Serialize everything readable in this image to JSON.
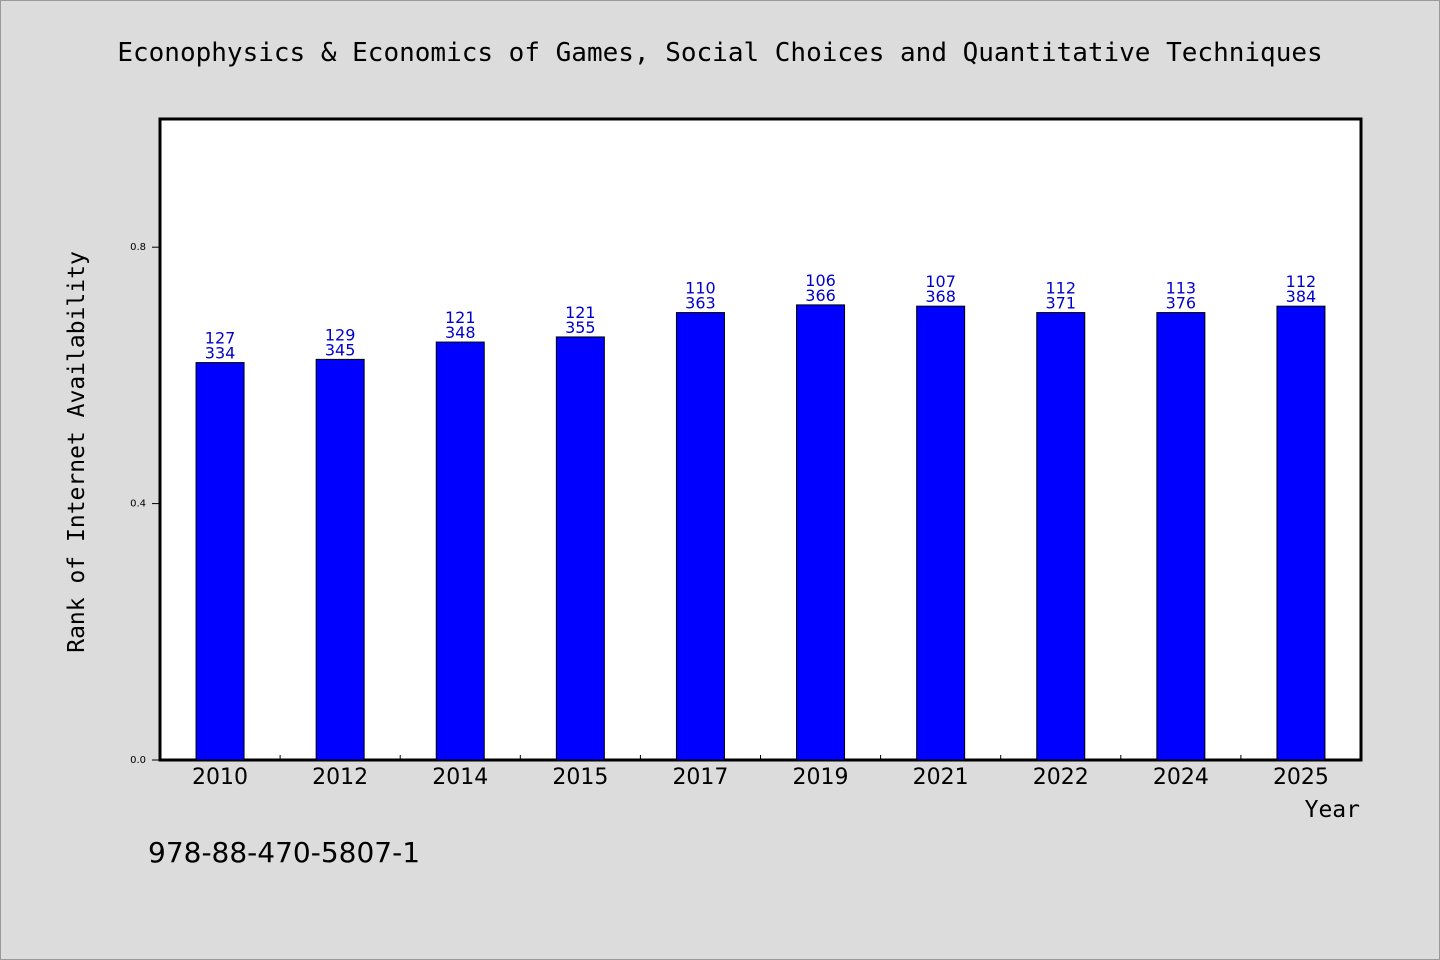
{
  "chart_data": {
    "type": "bar",
    "title": "Econophysics & Economics of Games, Social Choices and Quantitative Techniques",
    "xlabel": "Year",
    "ylabel": "Rank of Internet Availability",
    "ylim": [
      0,
      1.0
    ],
    "yticks": [
      "0.0",
      "0.4",
      "0.8"
    ],
    "ytick_values": [
      0.0,
      0.4,
      0.8
    ],
    "categories": [
      "2010",
      "2012",
      "2014",
      "2015",
      "2017",
      "2019",
      "2021",
      "2022",
      "2024",
      "2025"
    ],
    "values": [
      0.62,
      0.625,
      0.652,
      0.66,
      0.698,
      0.71,
      0.708,
      0.698,
      0.698,
      0.708
    ],
    "labels_top": [
      "127",
      "129",
      "121",
      "121",
      "110",
      "106",
      "107",
      "112",
      "113",
      "112"
    ],
    "labels_bottom": [
      "334",
      "345",
      "348",
      "355",
      "363",
      "366",
      "368",
      "371",
      "376",
      "384"
    ],
    "bar_color": "#0000ff",
    "label_color": "#0000cc",
    "grid": false,
    "legend": "none"
  },
  "footer": {
    "isbn": "978-88-470-5807-1"
  }
}
